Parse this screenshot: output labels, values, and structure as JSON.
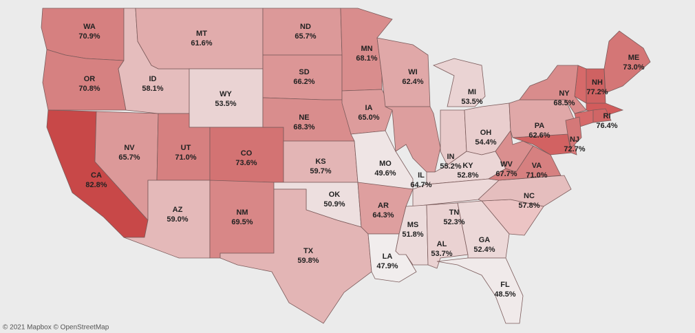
{
  "map": {
    "attribution": "© 2021 Mapbox © OpenStreetMap",
    "color_low": "#f1eded",
    "color_high": "#c84848",
    "states": [
      {
        "abbr": "WA",
        "value": 70.9,
        "label": "70.9%"
      },
      {
        "abbr": "OR",
        "value": 70.8,
        "label": "70.8%"
      },
      {
        "abbr": "CA",
        "value": 82.8,
        "label": "82.8%"
      },
      {
        "abbr": "NV",
        "value": 65.7,
        "label": "65.7%"
      },
      {
        "abbr": "ID",
        "value": 58.1,
        "label": "58.1%"
      },
      {
        "abbr": "MT",
        "value": 61.6,
        "label": "61.6%"
      },
      {
        "abbr": "WY",
        "value": 53.5,
        "label": "53.5%"
      },
      {
        "abbr": "UT",
        "value": 71.0,
        "label": "71.0%"
      },
      {
        "abbr": "CO",
        "value": 73.6,
        "label": "73.6%"
      },
      {
        "abbr": "AZ",
        "value": 59.0,
        "label": "59.0%"
      },
      {
        "abbr": "NM",
        "value": 69.5,
        "label": "69.5%"
      },
      {
        "abbr": "ND",
        "value": 65.7,
        "label": "65.7%"
      },
      {
        "abbr": "SD",
        "value": 66.2,
        "label": "66.2%"
      },
      {
        "abbr": "NE",
        "value": 68.3,
        "label": "68.3%"
      },
      {
        "abbr": "KS",
        "value": 59.7,
        "label": "59.7%"
      },
      {
        "abbr": "OK",
        "value": 50.9,
        "label": "50.9%"
      },
      {
        "abbr": "TX",
        "value": 59.8,
        "label": "59.8%"
      },
      {
        "abbr": "MN",
        "value": 68.1,
        "label": "68.1%"
      },
      {
        "abbr": "IA",
        "value": 65.0,
        "label": "65.0%"
      },
      {
        "abbr": "MO",
        "value": 49.6,
        "label": "49.6%"
      },
      {
        "abbr": "AR",
        "value": 64.3,
        "label": "64.3%"
      },
      {
        "abbr": "LA",
        "value": 47.9,
        "label": "47.9%"
      },
      {
        "abbr": "WI",
        "value": 62.4,
        "label": "62.4%"
      },
      {
        "abbr": "IL",
        "value": 64.7,
        "label": "64.7%"
      },
      {
        "abbr": "MI",
        "value": 53.5,
        "label": "53.5%"
      },
      {
        "abbr": "IN",
        "value": 55.2,
        "label": "55.2%"
      },
      {
        "abbr": "OH",
        "value": 54.4,
        "label": "54.4%"
      },
      {
        "abbr": "KY",
        "value": 52.8,
        "label": "52.8%"
      },
      {
        "abbr": "TN",
        "value": 52.3,
        "label": "52.3%"
      },
      {
        "abbr": "MS",
        "value": 51.8,
        "label": "51.8%"
      },
      {
        "abbr": "AL",
        "value": 53.7,
        "label": "53.7%"
      },
      {
        "abbr": "GA",
        "value": 52.4,
        "label": "52.4%"
      },
      {
        "abbr": "FL",
        "value": 48.5,
        "label": "48.5%"
      },
      {
        "abbr": "NC",
        "value": 57.8,
        "label": "57.8%"
      },
      {
        "abbr": "WV",
        "value": 67.7,
        "label": "67.7%"
      },
      {
        "abbr": "VA",
        "value": 71.0,
        "label": "71.0%"
      },
      {
        "abbr": "PA",
        "value": 62.6,
        "label": "62.6%"
      },
      {
        "abbr": "NY",
        "value": 68.5,
        "label": "68.5%"
      },
      {
        "abbr": "NJ",
        "value": 72.7,
        "label": "72.7%"
      },
      {
        "abbr": "NH",
        "value": 77.2,
        "label": "77.2%"
      },
      {
        "abbr": "RI",
        "value": 76.4,
        "label": "76.4%"
      },
      {
        "abbr": "ME",
        "value": 73.0,
        "label": "73.0%"
      }
    ]
  }
}
